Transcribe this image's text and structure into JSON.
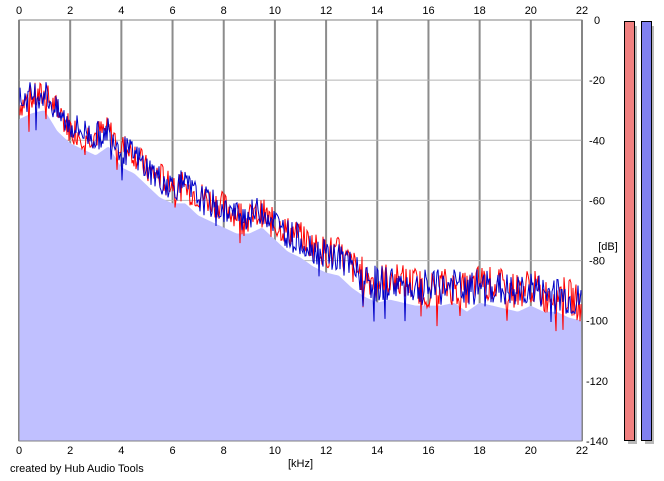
{
  "credit": "created by Hub Audio Tools",
  "meters": {
    "left_color": "#f08080",
    "right_color": "#8080f0"
  },
  "chart_data": {
    "type": "area",
    "xlabel": "[kHz]",
    "ylabel": "[dB]",
    "xlim": [
      0,
      22
    ],
    "ylim": [
      -140,
      0
    ],
    "x_ticks": [
      "0",
      "2",
      "4",
      "6",
      "8",
      "10",
      "12",
      "14",
      "16",
      "18",
      "20",
      "22"
    ],
    "y_ticks": [
      "0",
      "-20",
      "-40",
      "-60",
      "-80",
      "-100",
      "-120",
      "-140"
    ],
    "grid": true,
    "fill_color": "#c0c0ff",
    "series": [
      {
        "color": "#ff0000",
        "x": [
          0,
          0.5,
          1,
          1.5,
          2,
          2.5,
          3,
          3.5,
          4,
          4.5,
          5,
          5.5,
          6,
          6.5,
          7,
          7.5,
          8,
          8.5,
          9,
          9.5,
          10,
          10.5,
          11,
          11.5,
          12,
          12.5,
          13,
          13.5,
          14,
          14.5,
          15,
          15.5,
          16,
          16.5,
          17,
          17.5,
          18,
          18.5,
          19,
          19.5,
          20,
          20.5,
          21,
          21.5,
          22
        ],
        "y": [
          -28,
          -26,
          -25,
          -30,
          -36,
          -38,
          -38,
          -37,
          -42,
          -44,
          -50,
          -52,
          -54,
          -56,
          -58,
          -60,
          -62,
          -64,
          -66,
          -64,
          -68,
          -70,
          -72,
          -75,
          -77,
          -78,
          -82,
          -85,
          -87,
          -86,
          -87,
          -88,
          -90,
          -88,
          -89,
          -90,
          -87,
          -88,
          -89,
          -90,
          -88,
          -92,
          -90,
          -92,
          -95
        ]
      },
      {
        "color": "#0000c8",
        "x": [
          0,
          0.5,
          1,
          1.5,
          2,
          2.5,
          3,
          3.5,
          4,
          4.5,
          5,
          5.5,
          6,
          6.5,
          7,
          7.5,
          8,
          8.5,
          9,
          9.5,
          10,
          10.5,
          11,
          11.5,
          12,
          12.5,
          13,
          13.5,
          14,
          14.5,
          15,
          15.5,
          16,
          16.5,
          17,
          17.5,
          18,
          18.5,
          19,
          19.5,
          20,
          20.5,
          21,
          21.5,
          22
        ],
        "y": [
          -27,
          -25,
          -24,
          -31,
          -35,
          -37,
          -39,
          -36,
          -43,
          -45,
          -49,
          -53,
          -55,
          -55,
          -59,
          -61,
          -63,
          -65,
          -65,
          -63,
          -67,
          -71,
          -73,
          -76,
          -78,
          -79,
          -83,
          -86,
          -88,
          -87,
          -88,
          -89,
          -89,
          -89,
          -88,
          -91,
          -88,
          -89,
          -90,
          -91,
          -89,
          -91,
          -91,
          -93,
          -94
        ]
      }
    ]
  }
}
